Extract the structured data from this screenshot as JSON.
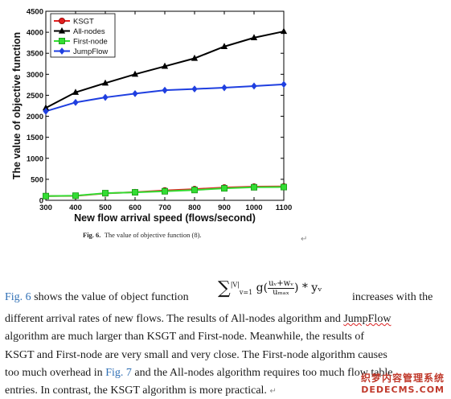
{
  "chart_data": {
    "type": "line",
    "xlabel": "New flow arrival speed (flows/second)",
    "ylabel": "The value of objective function",
    "x": [
      300,
      400,
      500,
      600,
      700,
      800,
      900,
      1000,
      1100
    ],
    "xlim": [
      300,
      1100
    ],
    "ylim": [
      0,
      4500
    ],
    "yticks": [
      0,
      500,
      1000,
      1500,
      2000,
      2500,
      3000,
      3500,
      4000,
      4500
    ],
    "grid": false,
    "legend_position": "top-left",
    "series": [
      {
        "name": "KSGT",
        "color": "#e02020",
        "marker": "circle",
        "values": [
          100,
          105,
          165,
          195,
          235,
          265,
          305,
          325,
          330
        ]
      },
      {
        "name": "All-nodes",
        "color": "#000000",
        "marker": "triangle",
        "values": [
          2200,
          2570,
          2790,
          3000,
          3190,
          3380,
          3660,
          3870,
          4020
        ]
      },
      {
        "name": "First-node",
        "color": "#33dd33",
        "marker": "square",
        "values": [
          100,
          110,
          170,
          190,
          215,
          245,
          285,
          310,
          315
        ]
      },
      {
        "name": "JumpFlow",
        "color": "#1f3fe0",
        "marker": "diamond",
        "values": [
          2120,
          2330,
          2450,
          2540,
          2620,
          2650,
          2680,
          2720,
          2760
        ]
      }
    ]
  },
  "caption": {
    "label": "Fig. 6.",
    "text": "The value of objective function (8)."
  },
  "formula": {
    "sum_sub": "v=1",
    "sum_sup": "|V|",
    "g": "g(",
    "num": "uᵥ+wᵥ",
    "den": "uₘₐₓ",
    "tail": ") * yᵥ"
  },
  "paragraph": {
    "fig6": "Fig. 6",
    "l1_mid": " shows the value of object function",
    "l1_end": "increases with the",
    "l2": "different arrival rates of new flows. The results of All-nodes algorithm and ",
    "l2_sq": "JumpFlow",
    "l3": "algorithm are much larger than KSGT and First-node. Meanwhile, the results of",
    "l4": "KSGT and First-node are very small and very close. The First-node algorithm causes",
    "l5_a": "too much overhead in ",
    "fig7": "Fig. 7",
    "l5_b": " and the All-nodes algorithm requires too much flow table",
    "l6": "entries. In contrast, the KSGT algorithm is more practical."
  },
  "marks": {
    "return": "↵"
  },
  "watermark": {
    "cn": "织梦内容管理系统",
    "en": "DEDECMS.COM"
  }
}
